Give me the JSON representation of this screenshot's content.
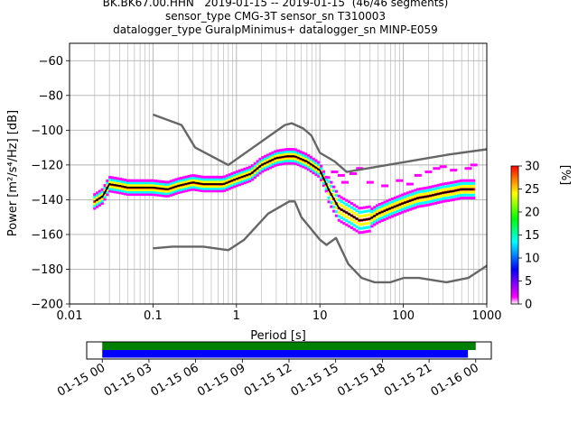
{
  "title_lines": [
    "BK.BK67.00.HHN   2019-01-15 -- 2019-01-15  (46/46 segments)",
    "sensor_type CMG-3T sensor_sn T310003",
    "datalogger_type GuralpMinimus+ datalogger_sn MINP-E059"
  ],
  "chart_data": [
    {
      "type": "heatmap",
      "title": "",
      "xlabel": "Period [s]",
      "ylabel": "Power [m²/s⁴/Hz] [dB]",
      "x_scale": "log",
      "xlim": [
        0.01,
        1000
      ],
      "ylim": [
        -200,
        -50
      ],
      "x_ticks": [
        0.01,
        0.1,
        1,
        10,
        100,
        1000
      ],
      "x_tick_labels": [
        "0.01",
        "0.1",
        "1",
        "10",
        "100",
        "1000"
      ],
      "y_ticks": [
        -200,
        -180,
        -160,
        -140,
        -120,
        -100,
        -80,
        -60
      ],
      "grid": true,
      "colorbar": {
        "label": "[%]",
        "range": [
          0,
          30
        ],
        "ticks": [
          0,
          5,
          10,
          15,
          20,
          25,
          30
        ],
        "colors": [
          "#ffffff",
          "#ff00ff",
          "#0000ff",
          "#00ffff",
          "#00ff00",
          "#ffff00",
          "#ff8000",
          "#ff0000"
        ]
      },
      "series": [
        {
          "kind": "noise-model-high",
          "color": "#666666",
          "x": [
            0.1,
            0.22,
            0.32,
            0.8,
            3.8,
            4.6,
            6.3,
            7.9,
            10,
            15,
            21,
            350,
            1000
          ],
          "y": [
            -91,
            -97,
            -110,
            -120,
            -97,
            -96,
            -99,
            -103,
            -113,
            -118,
            -124,
            -114,
            -111
          ]
        },
        {
          "kind": "noise-model-low",
          "color": "#666666",
          "x": [
            0.1,
            0.17,
            0.4,
            0.8,
            1.24,
            2.4,
            4.3,
            5,
            6,
            10,
            12,
            15.6,
            21.9,
            31.6,
            45,
            70,
            101,
            154,
            328,
            600,
            1000
          ],
          "y": [
            -168,
            -167,
            -167,
            -169,
            -163,
            -148,
            -141,
            -141,
            -150,
            -163,
            -166,
            -162,
            -177,
            -185,
            -187.5,
            -187.5,
            -185,
            -185,
            -187.5,
            -185,
            -178
          ]
        },
        {
          "kind": "mean-psd",
          "color": "#000000",
          "x": [
            0.02,
            0.025,
            0.03,
            0.04,
            0.05,
            0.07,
            0.1,
            0.15,
            0.2,
            0.3,
            0.4,
            0.5,
            0.7,
            1,
            1.5,
            2,
            3,
            4,
            5,
            7,
            10,
            13,
            17,
            22,
            30,
            40,
            50,
            70,
            100,
            150,
            200,
            300,
            400,
            500,
            700
          ],
          "y": [
            -141,
            -138,
            -131,
            -132,
            -133,
            -133,
            -133,
            -134,
            -132,
            -130,
            -131,
            -131,
            -131,
            -128,
            -125,
            -120,
            -116,
            -115,
            -115,
            -118,
            -123,
            -135,
            -145,
            -148,
            -152,
            -151,
            -148,
            -145,
            -142,
            -139,
            -138,
            -136,
            -135,
            -134,
            -134
          ]
        }
      ]
    },
    {
      "type": "timeline",
      "title": "",
      "x_tick_labels": [
        "01-15 00",
        "01-15 03",
        "01-15 06",
        "01-15 09",
        "01-15 12",
        "01-15 15",
        "01-15 18",
        "01-15 21",
        "01-16 00"
      ],
      "x_range_hours": [
        -1,
        25
      ],
      "bars": [
        {
          "name": "",
          "color": "#008000",
          "start_hour": 0,
          "end_hour": 24.0
        },
        {
          "name": "",
          "color": "#0000ff",
          "start_hour": 0,
          "end_hour": 23.5
        }
      ]
    }
  ]
}
